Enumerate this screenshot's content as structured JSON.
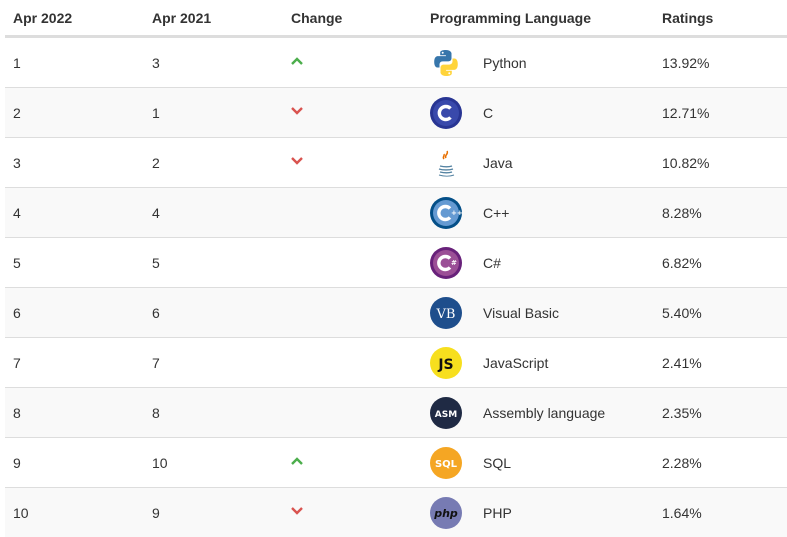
{
  "headers": {
    "apr2022": "Apr 2022",
    "apr2021": "Apr 2021",
    "change": "Change",
    "language": "Programming Language",
    "ratings": "Ratings"
  },
  "colors": {
    "up": "#4cae4c",
    "down": "#d9534f"
  },
  "rows": [
    {
      "rank2022": "1",
      "rank2021": "3",
      "change": "up",
      "icon": "python-logo-icon",
      "language": "Python",
      "rating": "13.92%"
    },
    {
      "rank2022": "2",
      "rank2021": "1",
      "change": "down",
      "icon": "c-logo-icon",
      "language": "C",
      "rating": "12.71%"
    },
    {
      "rank2022": "3",
      "rank2021": "2",
      "change": "down",
      "icon": "java-logo-icon",
      "language": "Java",
      "rating": "10.82%"
    },
    {
      "rank2022": "4",
      "rank2021": "4",
      "change": "none",
      "icon": "cpp-logo-icon",
      "language": "C++",
      "rating": "8.28%"
    },
    {
      "rank2022": "5",
      "rank2021": "5",
      "change": "none",
      "icon": "csharp-logo-icon",
      "language": "C#",
      "rating": "6.82%"
    },
    {
      "rank2022": "6",
      "rank2021": "6",
      "change": "none",
      "icon": "visual-basic-logo-icon",
      "language": "Visual Basic",
      "rating": "5.40%",
      "logo_text": "VB"
    },
    {
      "rank2022": "7",
      "rank2021": "7",
      "change": "none",
      "icon": "javascript-logo-icon",
      "language": "JavaScript",
      "rating": "2.41%",
      "logo_text": "JS"
    },
    {
      "rank2022": "8",
      "rank2021": "8",
      "change": "none",
      "icon": "assembly-logo-icon",
      "language": "Assembly language",
      "rating": "2.35%",
      "logo_text": "ASM"
    },
    {
      "rank2022": "9",
      "rank2021": "10",
      "change": "up",
      "icon": "sql-logo-icon",
      "language": "SQL",
      "rating": "2.28%",
      "logo_text": "SQL"
    },
    {
      "rank2022": "10",
      "rank2021": "9",
      "change": "down",
      "icon": "php-logo-icon",
      "language": "PHP",
      "rating": "1.64%",
      "logo_text": "php"
    }
  ]
}
